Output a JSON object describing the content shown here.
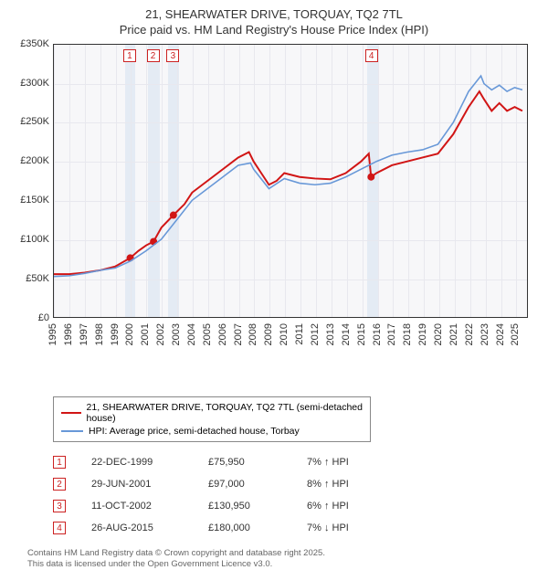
{
  "title_line1": "21, SHEARWATER DRIVE, TORQUAY, TQ2 7TL",
  "title_line2": "Price paid vs. HM Land Registry's House Price Index (HPI)",
  "chart": {
    "type": "line",
    "background_color": "#f7f7f9",
    "border_color": "#333333",
    "grid_color": "#e8e8ee",
    "x_years": [
      1995,
      1996,
      1997,
      1998,
      1999,
      2000,
      2001,
      2002,
      2003,
      2004,
      2005,
      2006,
      2007,
      2008,
      2009,
      2010,
      2011,
      2012,
      2013,
      2014,
      2015,
      2016,
      2017,
      2018,
      2019,
      2020,
      2021,
      2022,
      2023,
      2024,
      2025
    ],
    "xlim": [
      1995,
      2025.8
    ],
    "ylim": [
      0,
      350000
    ],
    "ytick_step": 50000,
    "yticks": [
      "£0",
      "£50K",
      "£100K",
      "£150K",
      "£200K",
      "£250K",
      "£300K",
      "£350K"
    ],
    "shaded_bands": [
      {
        "from": 1999.6,
        "to": 2000.3
      },
      {
        "from": 2001.1,
        "to": 2001.9
      },
      {
        "from": 2002.4,
        "to": 2003.1
      },
      {
        "from": 2015.3,
        "to": 2016.0
      }
    ],
    "event_markers": [
      {
        "n": "1",
        "year": 1999.97,
        "top": 6
      },
      {
        "n": "2",
        "year": 2001.49,
        "top": 6
      },
      {
        "n": "3",
        "year": 2002.78,
        "top": 6
      },
      {
        "n": "4",
        "year": 2015.65,
        "top": 6
      }
    ],
    "series": [
      {
        "name": "price_paid",
        "label": "21, SHEARWATER DRIVE, TORQUAY, TQ2 7TL (semi-detached house)",
        "color": "#d11515",
        "line_width": 2,
        "data": [
          [
            1995,
            55000
          ],
          [
            1996,
            55000
          ],
          [
            1997,
            57000
          ],
          [
            1998,
            60000
          ],
          [
            1999,
            65000
          ],
          [
            1999.97,
            75950
          ],
          [
            2000.5,
            85000
          ],
          [
            2001,
            92000
          ],
          [
            2001.49,
            97000
          ],
          [
            2002,
            115000
          ],
          [
            2002.78,
            130950
          ],
          [
            2003.5,
            145000
          ],
          [
            2004,
            160000
          ],
          [
            2005,
            175000
          ],
          [
            2006,
            190000
          ],
          [
            2007,
            205000
          ],
          [
            2007.7,
            212000
          ],
          [
            2008,
            200000
          ],
          [
            2008.5,
            185000
          ],
          [
            2009,
            170000
          ],
          [
            2009.5,
            175000
          ],
          [
            2010,
            185000
          ],
          [
            2011,
            180000
          ],
          [
            2012,
            178000
          ],
          [
            2013,
            177000
          ],
          [
            2014,
            185000
          ],
          [
            2015,
            200000
          ],
          [
            2015.5,
            210000
          ],
          [
            2015.65,
            180000
          ],
          [
            2016,
            185000
          ],
          [
            2017,
            195000
          ],
          [
            2018,
            200000
          ],
          [
            2019,
            205000
          ],
          [
            2020,
            210000
          ],
          [
            2021,
            235000
          ],
          [
            2022,
            270000
          ],
          [
            2022.7,
            290000
          ],
          [
            2023,
            280000
          ],
          [
            2023.5,
            265000
          ],
          [
            2024,
            275000
          ],
          [
            2024.5,
            265000
          ],
          [
            2025,
            270000
          ],
          [
            2025.5,
            265000
          ]
        ],
        "markers": [
          {
            "x": 1999.97,
            "y": 75950
          },
          {
            "x": 2001.49,
            "y": 97000
          },
          {
            "x": 2002.78,
            "y": 130950
          },
          {
            "x": 2015.65,
            "y": 180000
          }
        ],
        "marker_radius": 4
      },
      {
        "name": "hpi",
        "label": "HPI: Average price, semi-detached house, Torbay",
        "color": "#6898d8",
        "line_width": 1.6,
        "data": [
          [
            1995,
            52000
          ],
          [
            1996,
            53000
          ],
          [
            1997,
            56000
          ],
          [
            1998,
            60000
          ],
          [
            1999,
            63000
          ],
          [
            2000,
            72000
          ],
          [
            2001,
            85000
          ],
          [
            2002,
            100000
          ],
          [
            2003,
            125000
          ],
          [
            2004,
            150000
          ],
          [
            2005,
            165000
          ],
          [
            2006,
            180000
          ],
          [
            2007,
            195000
          ],
          [
            2007.8,
            198000
          ],
          [
            2008,
            190000
          ],
          [
            2009,
            165000
          ],
          [
            2010,
            178000
          ],
          [
            2011,
            172000
          ],
          [
            2012,
            170000
          ],
          [
            2013,
            172000
          ],
          [
            2014,
            180000
          ],
          [
            2015,
            190000
          ],
          [
            2016,
            200000
          ],
          [
            2017,
            208000
          ],
          [
            2018,
            212000
          ],
          [
            2019,
            215000
          ],
          [
            2020,
            222000
          ],
          [
            2021,
            250000
          ],
          [
            2022,
            290000
          ],
          [
            2022.8,
            310000
          ],
          [
            2023,
            300000
          ],
          [
            2023.5,
            292000
          ],
          [
            2024,
            298000
          ],
          [
            2024.5,
            290000
          ],
          [
            2025,
            295000
          ],
          [
            2025.5,
            292000
          ]
        ]
      }
    ]
  },
  "legend_border": "#888888",
  "events": [
    {
      "n": "1",
      "date": "22-DEC-1999",
      "price": "£75,950",
      "change": "7% ↑ HPI"
    },
    {
      "n": "2",
      "date": "29-JUN-2001",
      "price": "£97,000",
      "change": "8% ↑ HPI"
    },
    {
      "n": "3",
      "date": "11-OCT-2002",
      "price": "£130,950",
      "change": "6% ↑ HPI"
    },
    {
      "n": "4",
      "date": "26-AUG-2015",
      "price": "£180,000",
      "change": "7% ↓ HPI"
    }
  ],
  "event_box_border": "#cc2222",
  "footer_line1": "Contains HM Land Registry data © Crown copyright and database right 2025.",
  "footer_line2": "This data is licensed under the Open Government Licence v3.0."
}
